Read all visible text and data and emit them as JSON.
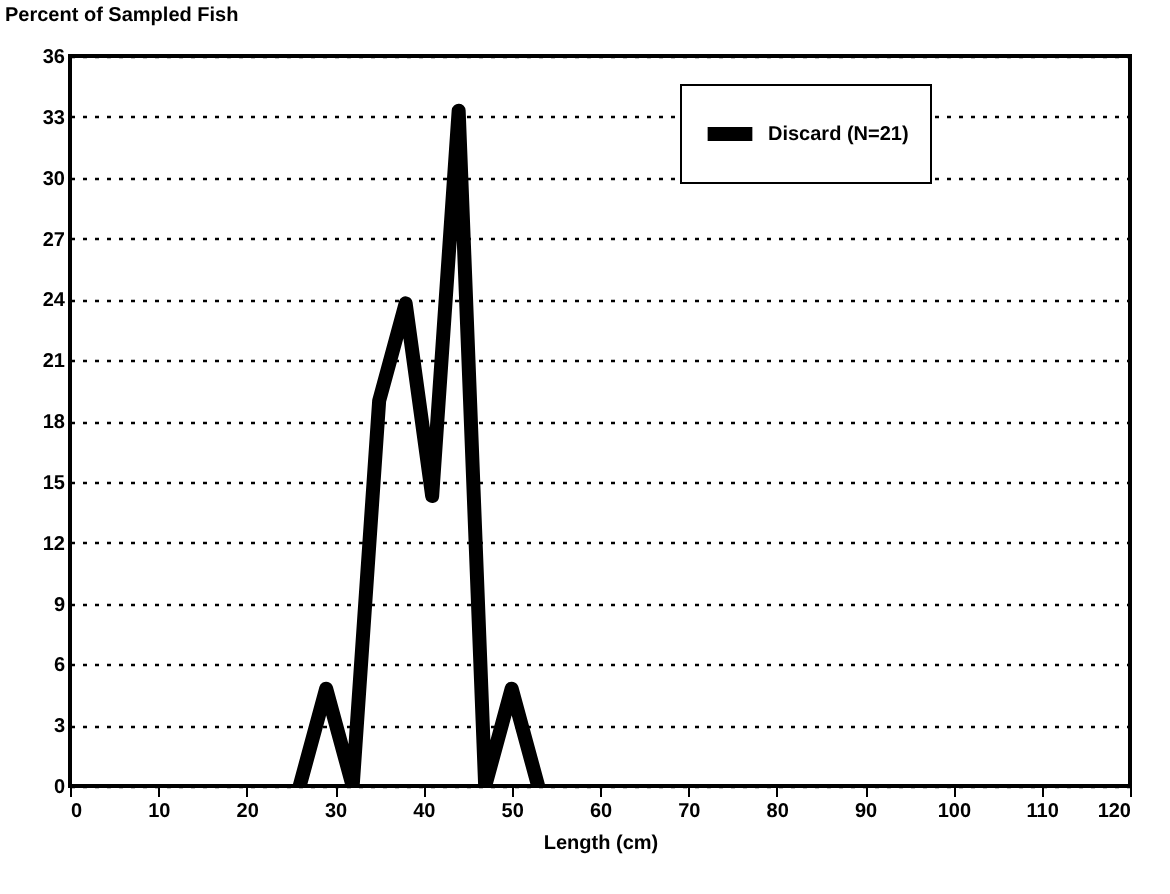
{
  "chart_data": {
    "type": "line",
    "xlabel": "Length (cm)",
    "ylabel": "Percent of Sampled Fish",
    "x": [
      26,
      29,
      32,
      35,
      38,
      41,
      44,
      47,
      50,
      53
    ],
    "series": [
      {
        "name": "Discard (N=21)",
        "color": "#000000",
        "values": [
          0,
          4.8,
          0,
          19,
          23.8,
          14.3,
          33.3,
          0,
          4.8,
          0
        ]
      }
    ],
    "xlim": [
      0,
      120
    ],
    "xticks": [
      0,
      10,
      20,
      30,
      40,
      50,
      60,
      70,
      80,
      90,
      100,
      110,
      120
    ],
    "ylim": [
      0,
      36
    ],
    "yticks": [
      0,
      3,
      6,
      9,
      12,
      15,
      18,
      21,
      24,
      27,
      30,
      33,
      36
    ],
    "grid": "y",
    "legend": "top right",
    "line_style": "solid"
  }
}
